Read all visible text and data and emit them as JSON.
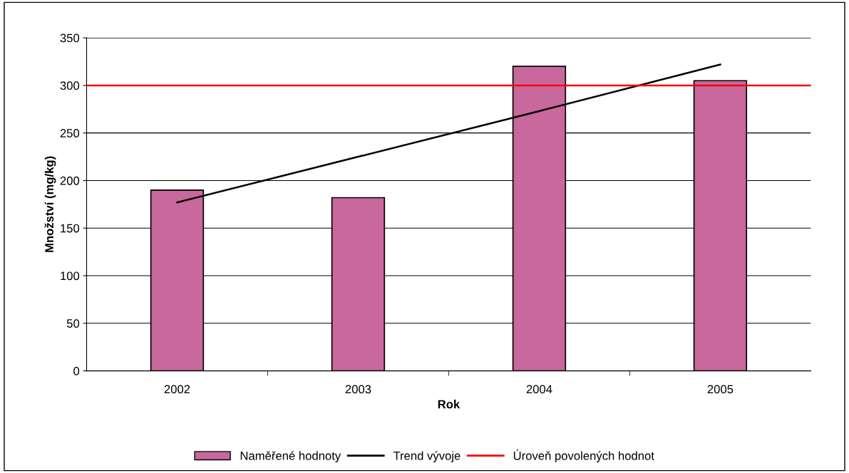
{
  "chart_data": {
    "type": "bar",
    "xlabel": "Rok",
    "ylabel": "Množství (mg/kg)",
    "categories": [
      "2002",
      "2003",
      "2004",
      "2005"
    ],
    "series": [
      {
        "name": "Naměřené hodnoty",
        "color": "#c8689c",
        "values": [
          190,
          182,
          320,
          305
        ]
      },
      {
        "name": "Trend vývoje",
        "type": "line",
        "color": "#000000",
        "values": [
          177,
          225,
          273,
          322
        ]
      }
    ],
    "ref_lines": [
      {
        "axis": "y",
        "value": 300,
        "label": "Úroveň povolených hodnot",
        "color": "#ff0000"
      }
    ],
    "ylim": [
      0,
      350
    ],
    "yticks": [
      0,
      50,
      100,
      150,
      200,
      250,
      300,
      350
    ],
    "grid": "y",
    "legend": "bottom",
    "marker": "none",
    "line_style": "solid"
  }
}
